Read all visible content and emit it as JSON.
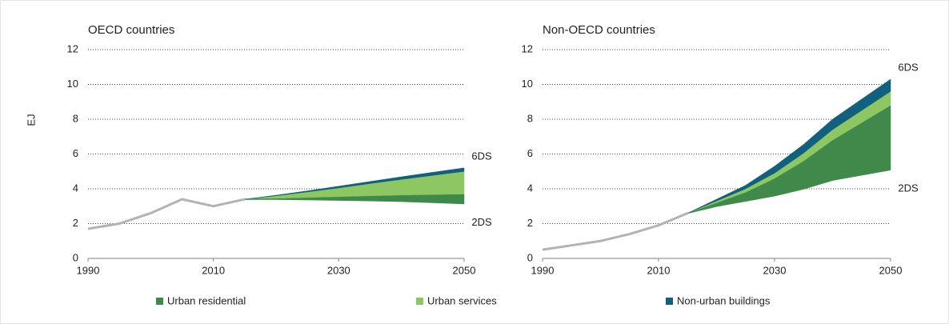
{
  "chart_data": [
    {
      "type": "stacked-area",
      "title": "OECD countries",
      "ylabel": "EJ",
      "xlim": [
        1990,
        2050
      ],
      "xticks": [
        1990,
        2010,
        2030,
        2050
      ],
      "ylim": [
        0,
        12
      ],
      "yticks": [
        0,
        2,
        4,
        6,
        8,
        10,
        12
      ],
      "grid": true,
      "history": {
        "color": "#b3b3b3",
        "x": [
          1990,
          1995,
          2000,
          2005,
          2010,
          2015
        ],
        "values": [
          1.7,
          2.0,
          2.6,
          3.4,
          3.0,
          3.4
        ]
      },
      "x": [
        2015,
        2020,
        2025,
        2030,
        2035,
        2040,
        2045,
        2050
      ],
      "baseline": {
        "label": "2DS",
        "values": [
          3.4,
          3.4,
          3.38,
          3.35,
          3.32,
          3.28,
          3.22,
          3.15
        ]
      },
      "top_label": "6DS",
      "series": [
        {
          "name": "Urban residential",
          "color": "#3f8a4a",
          "values": [
            0,
            0.05,
            0.12,
            0.2,
            0.28,
            0.36,
            0.45,
            0.55
          ]
        },
        {
          "name": "Urban services",
          "color": "#8dc762",
          "values": [
            0,
            0.15,
            0.32,
            0.5,
            0.7,
            0.9,
            1.1,
            1.3
          ]
        },
        {
          "name": "Non-urban buildings",
          "color": "#11607d",
          "values": [
            0,
            0.03,
            0.06,
            0.1,
            0.12,
            0.15,
            0.18,
            0.2
          ]
        }
      ]
    },
    {
      "type": "stacked-area",
      "title": "Non-OECD countries",
      "xlim": [
        1990,
        2050
      ],
      "xticks": [
        1990,
        2010,
        2030,
        2050
      ],
      "ylim": [
        0,
        12
      ],
      "yticks": [
        0,
        2,
        4,
        6,
        8,
        10,
        12
      ],
      "grid": true,
      "history": {
        "color": "#b3b3b3",
        "x": [
          1990,
          1995,
          2000,
          2005,
          2010,
          2015
        ],
        "values": [
          0.5,
          0.75,
          1.0,
          1.4,
          1.9,
          2.6
        ]
      },
      "x": [
        2015,
        2020,
        2025,
        2030,
        2035,
        2040,
        2045,
        2050
      ],
      "baseline": {
        "label": "2DS",
        "values": [
          2.6,
          3.0,
          3.3,
          3.6,
          4.0,
          4.5,
          4.8,
          5.1
        ]
      },
      "top_label": "6DS",
      "series": [
        {
          "name": "Urban residential",
          "color": "#3f8a4a",
          "values": [
            0,
            0.2,
            0.5,
            1.0,
            1.6,
            2.3,
            3.0,
            3.7
          ]
        },
        {
          "name": "Urban services",
          "color": "#8dc762",
          "values": [
            0,
            0.1,
            0.2,
            0.3,
            0.45,
            0.6,
            0.7,
            0.8
          ]
        },
        {
          "name": "Non-urban buildings",
          "color": "#11607d",
          "values": [
            0,
            0.1,
            0.2,
            0.4,
            0.5,
            0.6,
            0.65,
            0.7
          ]
        }
      ]
    }
  ]
}
